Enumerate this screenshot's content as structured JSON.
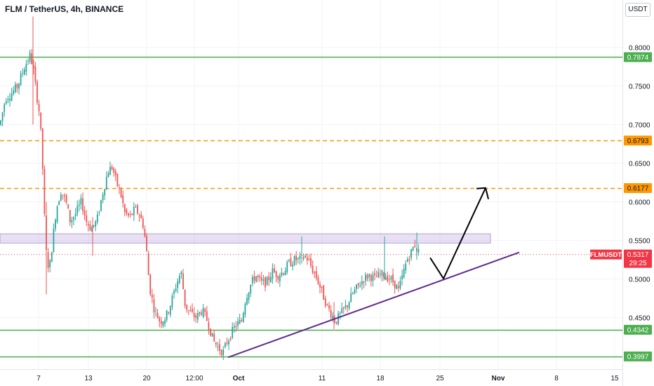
{
  "header": {
    "title": "FLM / TetherUS, 4h, BINANCE",
    "currency": "USDT"
  },
  "price_axis": {
    "ticks": [
      "0.8000",
      "0.7500",
      "0.7000",
      "0.6500",
      "0.6000",
      "0.5500",
      "0.5000",
      "0.4500"
    ]
  },
  "time_axis": {
    "ticks": [
      "7",
      "13",
      "20",
      "12:00",
      "Oct",
      "11",
      "18",
      "25",
      "Nov",
      "8",
      "15"
    ]
  },
  "current": {
    "symbol": "FLMUSDT",
    "price": "0.5317",
    "countdown": "29:25",
    "color": "#f23645"
  },
  "levels": [
    {
      "value": 0.7874,
      "label": "0.7874",
      "style": "solid",
      "color": "#4caf50"
    },
    {
      "value": 0.6793,
      "label": "0.6793",
      "style": "dashed",
      "color": "#ff9800"
    },
    {
      "value": 0.6177,
      "label": "0.6177",
      "style": "dashed",
      "color": "#ff9800"
    },
    {
      "value": 0.4342,
      "label": "0.4342",
      "style": "solid",
      "color": "#4caf50"
    },
    {
      "value": 0.3997,
      "label": "0.3997",
      "style": "solid",
      "color": "#4caf50"
    }
  ],
  "chart_data": {
    "type": "candlestick",
    "symbol": "FLM / TetherUS",
    "interval": "4h",
    "exchange": "BINANCE",
    "x_ticks": [
      "7",
      "13",
      "20",
      "12:00",
      "Oct",
      "11",
      "18",
      "25",
      "Nov",
      "8",
      "15"
    ],
    "y_ticks": [
      0.8,
      0.75,
      0.7,
      0.65,
      0.6,
      0.55,
      0.5,
      0.45
    ],
    "ylim": [
      0.385,
      0.84
    ],
    "up_color": "#26a69a",
    "down_color": "#ef5350",
    "price_path": [
      [
        0,
        0.7
      ],
      [
        8,
        0.735
      ],
      [
        16,
        0.74
      ],
      [
        25,
        0.75
      ],
      [
        35,
        0.775
      ],
      [
        43,
        0.79
      ],
      [
        47,
        0.775
      ],
      [
        52,
        0.74
      ],
      [
        57,
        0.71
      ],
      [
        61,
        0.64
      ],
      [
        65,
        0.54
      ],
      [
        70,
        0.51
      ],
      [
        75,
        0.55
      ],
      [
        80,
        0.59
      ],
      [
        87,
        0.615
      ],
      [
        94,
        0.6
      ],
      [
        100,
        0.575
      ],
      [
        108,
        0.585
      ],
      [
        116,
        0.6
      ],
      [
        123,
        0.575
      ],
      [
        130,
        0.565
      ],
      [
        138,
        0.575
      ],
      [
        146,
        0.61
      ],
      [
        154,
        0.64
      ],
      [
        160,
        0.645
      ],
      [
        166,
        0.625
      ],
      [
        172,
        0.61
      ],
      [
        178,
        0.585
      ],
      [
        185,
        0.58
      ],
      [
        192,
        0.59
      ],
      [
        198,
        0.585
      ],
      [
        204,
        0.57
      ],
      [
        208,
        0.545
      ],
      [
        213,
        0.49
      ],
      [
        220,
        0.46
      ],
      [
        228,
        0.445
      ],
      [
        236,
        0.45
      ],
      [
        244,
        0.47
      ],
      [
        252,
        0.495
      ],
      [
        258,
        0.51
      ],
      [
        264,
        0.465
      ],
      [
        272,
        0.455
      ],
      [
        280,
        0.45
      ],
      [
        288,
        0.46
      ],
      [
        296,
        0.445
      ],
      [
        304,
        0.42
      ],
      [
        312,
        0.41
      ],
      [
        318,
        0.405
      ],
      [
        324,
        0.42
      ],
      [
        330,
        0.43
      ],
      [
        336,
        0.44
      ],
      [
        344,
        0.445
      ],
      [
        350,
        0.475
      ],
      [
        356,
        0.49
      ],
      [
        364,
        0.505
      ],
      [
        372,
        0.495
      ],
      [
        380,
        0.495
      ],
      [
        388,
        0.51
      ],
      [
        396,
        0.505
      ],
      [
        404,
        0.51
      ],
      [
        412,
        0.52
      ],
      [
        420,
        0.525
      ],
      [
        428,
        0.525
      ],
      [
        436,
        0.53
      ],
      [
        444,
        0.515
      ],
      [
        452,
        0.5
      ],
      [
        460,
        0.48
      ],
      [
        466,
        0.465
      ],
      [
        472,
        0.455
      ],
      [
        478,
        0.445
      ],
      [
        486,
        0.455
      ],
      [
        494,
        0.465
      ],
      [
        502,
        0.48
      ],
      [
        510,
        0.49
      ],
      [
        518,
        0.5
      ],
      [
        526,
        0.505
      ],
      [
        534,
        0.5
      ],
      [
        540,
        0.505
      ],
      [
        548,
        0.505
      ],
      [
        556,
        0.5
      ],
      [
        562,
        0.495
      ],
      [
        568,
        0.485
      ],
      [
        574,
        0.505
      ],
      [
        580,
        0.525
      ],
      [
        586,
        0.535
      ],
      [
        591,
        0.545
      ],
      [
        596,
        0.535
      ]
    ],
    "resistance_zone": [
      0.5465,
      0.5585
    ],
    "trendline": [
      [
        325,
        0.3985
      ],
      [
        740,
        0.5345
      ]
    ],
    "projection": [
      [
        613,
        0.5275
      ],
      [
        632,
        0.5005
      ],
      [
        692,
        0.618
      ]
    ],
    "annotations": [
      "0.7874",
      "0.6793",
      "0.6177",
      "0.4342",
      "0.3997"
    ]
  }
}
